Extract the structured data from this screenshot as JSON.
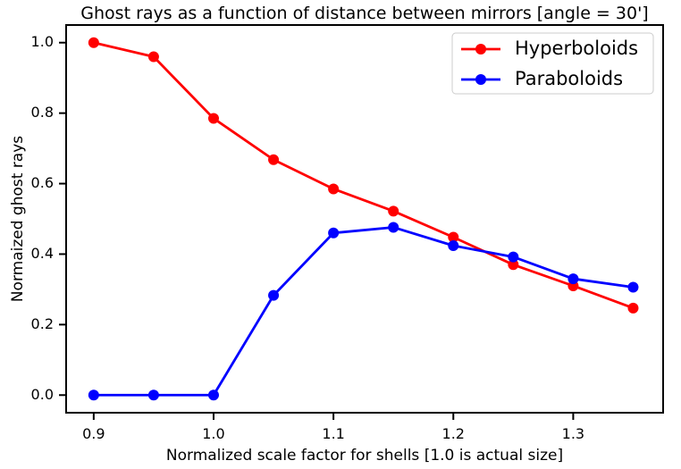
{
  "chart_data": {
    "type": "line",
    "title": "Ghost rays as a function of distance between mirrors [angle = 30']",
    "xlabel": "Normalized scale factor for shells [1.0 is actual size]",
    "ylabel": "Normaized ghost rays",
    "x": [
      0.9,
      0.95,
      1.0,
      1.05,
      1.1,
      1.15,
      1.2,
      1.25,
      1.3,
      1.35
    ],
    "xlim": [
      0.877,
      1.375
    ],
    "ylim": [
      -0.05,
      1.05
    ],
    "xticks": [
      0.9,
      1.0,
      1.1,
      1.2,
      1.3
    ],
    "xtick_labels": [
      "0.9",
      "1.0",
      "1.1",
      "1.2",
      "1.3"
    ],
    "yticks": [
      0.0,
      0.2,
      0.4,
      0.6,
      0.8,
      1.0
    ],
    "ytick_labels": [
      "0.0",
      "0.2",
      "0.4",
      "0.6",
      "0.8",
      "1.0"
    ],
    "grid": false,
    "legend_position": "top-right",
    "series": [
      {
        "name": "Hyperboloids",
        "color": "#ff0000",
        "values": [
          1.0,
          0.96,
          0.785,
          0.668,
          0.585,
          0.522,
          0.448,
          0.37,
          0.31,
          0.247
        ]
      },
      {
        "name": "Paraboloids",
        "color": "#0000ff",
        "values": [
          0.0,
          0.0,
          0.0,
          0.283,
          0.46,
          0.476,
          0.424,
          0.392,
          0.33,
          0.306
        ]
      }
    ]
  }
}
